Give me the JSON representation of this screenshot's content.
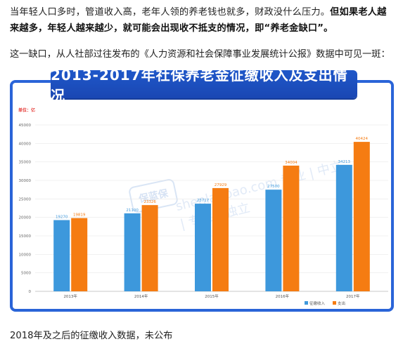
{
  "article": {
    "para1_normal": "当年轻人口多时，管道收入高，老年人领的养老钱也就多，财政没什么压力。",
    "para1_bold": "但如果老人越来越多，年轻人越来越少，就可能会出现收不抵支的情况，即“养老金缺口”。",
    "para2": "这一缺口，从人社部过往发布的《人力资源和社会保障事业发展统计公报》数据中可见一斑：",
    "para3": "2018年及之后的征缴收入数据，未公布"
  },
  "watermark": {
    "logo_text": "保蓝保",
    "text": "shenlanbao.com  专业 | 中立 | 专业 | 独立"
  },
  "colors": {
    "banner": "#1f57c9",
    "frame": "#2a64d8",
    "income": "#3d98dc",
    "expense": "#f57c12",
    "unit": "#e53935"
  },
  "chart_data": {
    "type": "bar",
    "title": "2013-2017年社保养老金征缴收入及支出情况",
    "unit_label": "单位：亿",
    "categories": [
      "2013年",
      "2014年",
      "2015年",
      "2016年",
      "2017年"
    ],
    "series": [
      {
        "name": "征缴收入",
        "values": [
          19270,
          21100,
          23717,
          27500,
          34213
        ]
      },
      {
        "name": "支出",
        "values": [
          19819,
          23326,
          27929,
          34004,
          40424
        ]
      }
    ],
    "ylim": [
      0,
      45000
    ],
    "yticks": [
      0,
      5000,
      10000,
      15000,
      20000,
      25000,
      30000,
      35000,
      40000,
      45000
    ],
    "legend_position": "bottom-right",
    "grid": true
  }
}
